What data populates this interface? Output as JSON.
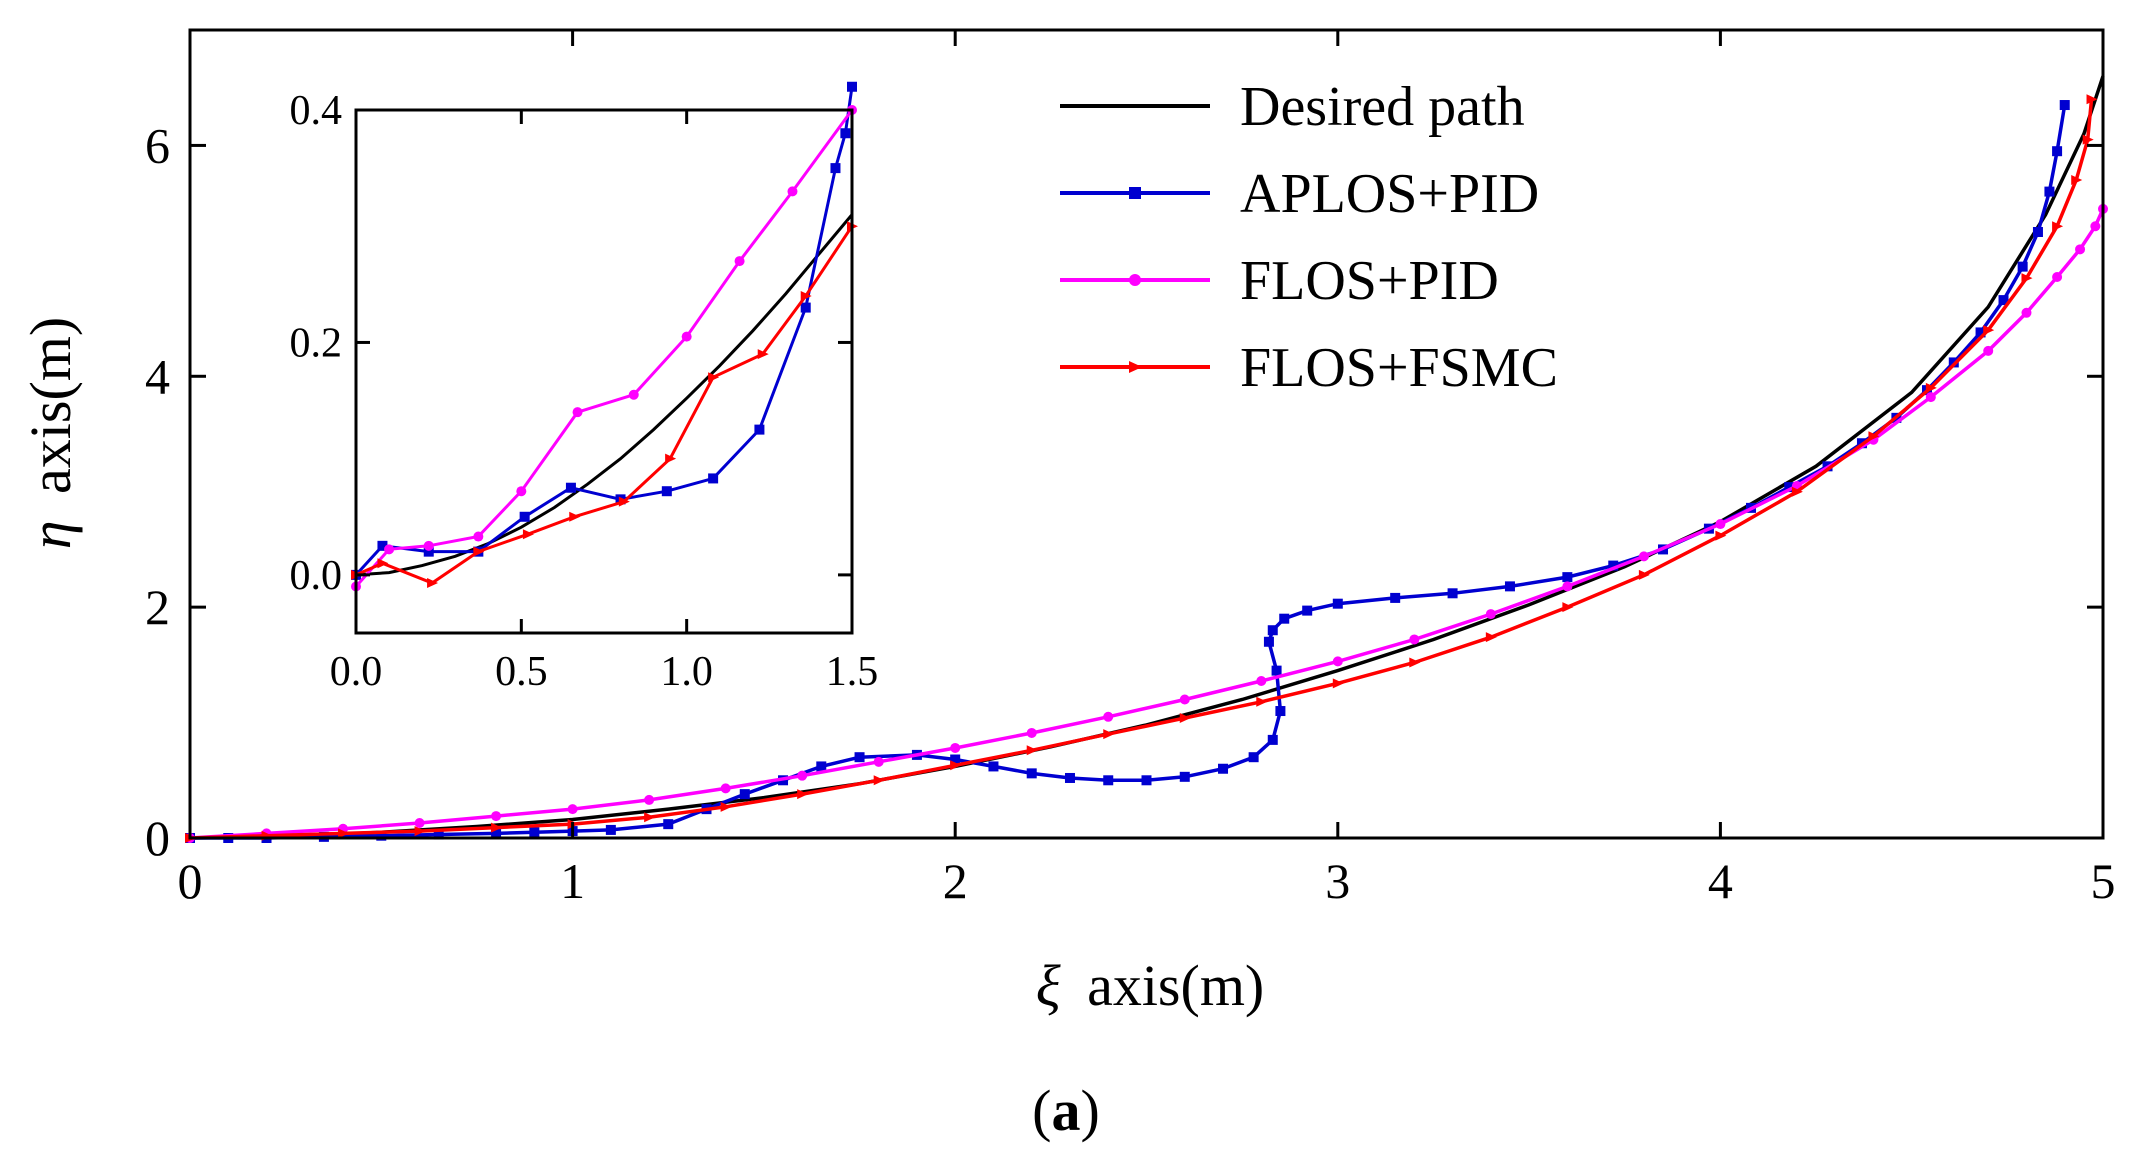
{
  "chart_data": {
    "type": "line",
    "xlabel_symbol": "ξ",
    "xlabel": "axis(m)",
    "ylabel_symbol": "η",
    "ylabel": "axis(m)",
    "xlim": [
      0,
      5
    ],
    "ylim": [
      0,
      7
    ],
    "xticks": [
      0,
      1,
      2,
      3,
      4,
      5
    ],
    "yticks": [
      0,
      2,
      4,
      6
    ],
    "legend_position": "top-right",
    "panel_label_open": "(",
    "panel_label_letter": "a",
    "panel_label_close": ")",
    "series": [
      {
        "name": "Desired path",
        "color": "#000000",
        "marker": "none",
        "x": [
          0,
          0.25,
          0.5,
          0.75,
          1.0,
          1.25,
          1.5,
          1.75,
          2.0,
          2.25,
          2.5,
          2.75,
          3.0,
          3.25,
          3.5,
          3.75,
          4.0,
          4.25,
          4.5,
          4.7,
          4.85,
          4.95,
          5.0
        ],
        "y": [
          0,
          0.01,
          0.05,
          0.1,
          0.16,
          0.25,
          0.35,
          0.47,
          0.62,
          0.79,
          0.98,
          1.2,
          1.45,
          1.72,
          2.02,
          2.35,
          2.74,
          3.22,
          3.86,
          4.6,
          5.4,
          6.1,
          6.6
        ]
      },
      {
        "name": "APLOS+PID",
        "color": "#0000d0",
        "marker": "square",
        "x": [
          0,
          0.1,
          0.2,
          0.35,
          0.5,
          0.65,
          0.8,
          0.9,
          1.0,
          1.1,
          1.25,
          1.35,
          1.45,
          1.55,
          1.65,
          1.75,
          1.9,
          2.0,
          2.1,
          2.2,
          2.3,
          2.4,
          2.5,
          2.6,
          2.7,
          2.78,
          2.83,
          2.85,
          2.84,
          2.82,
          2.83,
          2.86,
          2.92,
          3.0,
          3.15,
          3.3,
          3.45,
          3.6,
          3.72,
          3.85,
          3.97,
          4.08,
          4.18,
          4.28,
          4.37,
          4.46,
          4.54,
          4.61,
          4.68,
          4.74,
          4.79,
          4.83,
          4.86,
          4.88,
          4.9
        ],
        "y": [
          0,
          0,
          0,
          0.01,
          0.02,
          0.03,
          0.04,
          0.05,
          0.06,
          0.07,
          0.12,
          0.25,
          0.38,
          0.5,
          0.62,
          0.7,
          0.72,
          0.68,
          0.62,
          0.56,
          0.52,
          0.5,
          0.5,
          0.53,
          0.6,
          0.7,
          0.85,
          1.1,
          1.45,
          1.7,
          1.8,
          1.9,
          1.97,
          2.03,
          2.08,
          2.12,
          2.18,
          2.26,
          2.36,
          2.5,
          2.68,
          2.86,
          3.04,
          3.22,
          3.42,
          3.64,
          3.88,
          4.12,
          4.38,
          4.66,
          4.95,
          5.25,
          5.6,
          5.95,
          6.35
        ]
      },
      {
        "name": "FLOS+PID",
        "color": "#ff00ff",
        "marker": "circle",
        "x": [
          0,
          0.2,
          0.4,
          0.6,
          0.8,
          1.0,
          1.2,
          1.4,
          1.6,
          1.8,
          2.0,
          2.2,
          2.4,
          2.6,
          2.8,
          3.0,
          3.2,
          3.4,
          3.6,
          3.8,
          4.0,
          4.2,
          4.4,
          4.55,
          4.7,
          4.8,
          4.88,
          4.94,
          4.98,
          5.0
        ],
        "y": [
          0,
          0.04,
          0.08,
          0.13,
          0.19,
          0.25,
          0.33,
          0.43,
          0.54,
          0.66,
          0.78,
          0.91,
          1.05,
          1.2,
          1.36,
          1.53,
          1.72,
          1.94,
          2.18,
          2.44,
          2.72,
          3.05,
          3.45,
          3.82,
          4.22,
          4.55,
          4.86,
          5.1,
          5.3,
          5.45
        ]
      },
      {
        "name": "FLOS+FSMC",
        "color": "#ff0000",
        "marker": "triangle",
        "x": [
          0,
          0.2,
          0.4,
          0.6,
          0.8,
          1.0,
          1.2,
          1.4,
          1.6,
          1.8,
          2.0,
          2.2,
          2.4,
          2.6,
          2.8,
          3.0,
          3.2,
          3.4,
          3.6,
          3.8,
          4.0,
          4.2,
          4.4,
          4.55,
          4.7,
          4.8,
          4.88,
          4.93,
          4.96,
          4.97
        ],
        "y": [
          0,
          0.02,
          0.04,
          0.06,
          0.09,
          0.12,
          0.18,
          0.27,
          0.38,
          0.5,
          0.63,
          0.76,
          0.9,
          1.04,
          1.18,
          1.34,
          1.52,
          1.74,
          2.0,
          2.28,
          2.62,
          3.0,
          3.48,
          3.9,
          4.4,
          4.85,
          5.3,
          5.7,
          6.05,
          6.4
        ]
      }
    ],
    "inset": {
      "xlim": [
        0,
        1.5
      ],
      "ylim": [
        -0.05,
        0.4
      ],
      "xticks": [
        0.0,
        0.5,
        1.0,
        1.5
      ],
      "xtick_labels": [
        "0.0",
        "0.5",
        "1.0",
        "1.5"
      ],
      "yticks": [
        0.0,
        0.2,
        0.4
      ],
      "ytick_labels": [
        "0.0",
        "0.2",
        "0.4"
      ],
      "series": [
        {
          "name": "Desired path",
          "color": "#000000",
          "marker": "none",
          "x": [
            0,
            0.1,
            0.2,
            0.3,
            0.4,
            0.5,
            0.6,
            0.7,
            0.8,
            0.9,
            1.0,
            1.1,
            1.2,
            1.3,
            1.4,
            1.5
          ],
          "y": [
            0,
            0.002,
            0.008,
            0.016,
            0.027,
            0.041,
            0.058,
            0.078,
            0.1,
            0.125,
            0.152,
            0.18,
            0.21,
            0.242,
            0.276,
            0.31
          ]
        },
        {
          "name": "APLOS+PID",
          "color": "#0000d0",
          "marker": "square",
          "x": [
            0,
            0.08,
            0.22,
            0.37,
            0.51,
            0.65,
            0.8,
            0.94,
            1.08,
            1.22,
            1.36,
            1.45,
            1.48,
            1.5
          ],
          "y": [
            0,
            0.025,
            0.02,
            0.02,
            0.05,
            0.075,
            0.065,
            0.072,
            0.083,
            0.125,
            0.23,
            0.35,
            0.38,
            0.42
          ]
        },
        {
          "name": "FLOS+PID",
          "color": "#ff00ff",
          "marker": "circle",
          "x": [
            0,
            0.1,
            0.22,
            0.37,
            0.5,
            0.67,
            0.84,
            1.0,
            1.16,
            1.32,
            1.5
          ],
          "y": [
            -0.01,
            0.022,
            0.025,
            0.033,
            0.072,
            0.14,
            0.155,
            0.205,
            0.27,
            0.33,
            0.4
          ]
        },
        {
          "name": "FLOS+FSMC",
          "color": "#ff0000",
          "marker": "triangle",
          "x": [
            0,
            0.08,
            0.23,
            0.37,
            0.52,
            0.66,
            0.81,
            0.95,
            1.08,
            1.23,
            1.36,
            1.5
          ],
          "y": [
            0,
            0.01,
            -0.007,
            0.02,
            0.035,
            0.05,
            0.063,
            0.1,
            0.17,
            0.19,
            0.24,
            0.3
          ]
        }
      ]
    }
  }
}
